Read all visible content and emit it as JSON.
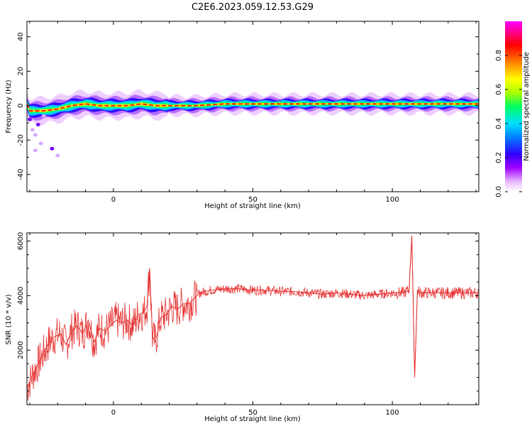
{
  "figure_title": "C2E6.2023.059.12.53.G29",
  "colors": {
    "snr_line": "#e63232",
    "axes": "#000000",
    "colormap": [
      "#ffffff",
      "#e8b8ff",
      "#a000ff",
      "#3000ff",
      "#0080ff",
      "#00e0ff",
      "#00ff60",
      "#aaff00",
      "#ffff00",
      "#ff8000",
      "#ff0000",
      "#ff00ff"
    ]
  },
  "chart_data": [
    {
      "type": "heatmap",
      "xlabel": "Height of straight line (km)",
      "ylabel": "Frequency (Hz)",
      "xlim": [
        -31,
        131
      ],
      "ylim": [
        -50,
        49
      ],
      "xticks": [
        0,
        50,
        100
      ],
      "yticks": [
        -40,
        -20,
        0,
        20,
        40
      ],
      "ridge": [
        {
          "x": -30,
          "y": -3
        },
        {
          "x": -25,
          "y": -3
        },
        {
          "x": -20,
          "y": -2
        },
        {
          "x": -15,
          "y": 0
        },
        {
          "x": -10,
          "y": 1
        },
        {
          "x": -5,
          "y": 0
        },
        {
          "x": 0,
          "y": 0
        },
        {
          "x": 5,
          "y": 0
        },
        {
          "x": 10,
          "y": 1
        },
        {
          "x": 15,
          "y": 0
        },
        {
          "x": 20,
          "y": 0
        },
        {
          "x": 30,
          "y": 0
        },
        {
          "x": 40,
          "y": 1
        },
        {
          "x": 50,
          "y": 1
        },
        {
          "x": 60,
          "y": 1
        },
        {
          "x": 70,
          "y": 1
        },
        {
          "x": 80,
          "y": 1
        },
        {
          "x": 90,
          "y": 1
        },
        {
          "x": 100,
          "y": 1
        },
        {
          "x": 106,
          "y": 1
        },
        {
          "x": 110,
          "y": 1
        },
        {
          "x": 120,
          "y": 1
        },
        {
          "x": 130,
          "y": 1
        }
      ],
      "colorbar": {
        "label": "Normalized spectral amplitude",
        "range": [
          0,
          1
        ],
        "ticks": [
          "0.0",
          "0.2",
          "0.4",
          "0.6",
          "0.8"
        ]
      }
    },
    {
      "type": "line",
      "xlabel": "Height of straight line (km)",
      "ylabel": "SNR (10 * v/v)",
      "xlim": [
        -31,
        131
      ],
      "ylim": [
        0,
        6300
      ],
      "xticks": [
        0,
        50,
        100
      ],
      "yticks": [
        2000,
        4000,
        6000
      ],
      "series": [
        {
          "x": [
            -31,
            -29,
            -27,
            -25,
            -23,
            -21,
            -19,
            -17,
            -15,
            -13,
            -11,
            -9,
            -7,
            -5,
            -3,
            -1,
            1,
            3,
            5,
            7,
            9,
            11,
            12,
            13,
            14,
            15,
            17,
            19,
            21,
            23,
            25,
            27,
            29,
            31,
            35,
            40,
            45,
            50,
            55,
            60,
            65,
            70,
            75,
            80,
            85,
            90,
            95,
            100,
            104,
            106,
            107,
            108,
            109,
            110,
            115,
            120,
            125,
            131
          ],
          "y": [
            600,
            1100,
            1500,
            1900,
            2300,
            2500,
            2600,
            2200,
            2700,
            2900,
            2600,
            3100,
            2300,
            2800,
            2700,
            2900,
            3100,
            3000,
            3100,
            2900,
            3300,
            3400,
            3600,
            5000,
            2500,
            2300,
            3200,
            3300,
            3600,
            3500,
            3700,
            3700,
            3900,
            4100,
            4200,
            4250,
            4250,
            4200,
            4200,
            4150,
            4150,
            4100,
            4050,
            4100,
            4050,
            4000,
            4050,
            4100,
            4100,
            4200,
            6200,
            1000,
            4200,
            4100,
            4100,
            4100,
            4100,
            4100
          ]
        }
      ]
    }
  ]
}
